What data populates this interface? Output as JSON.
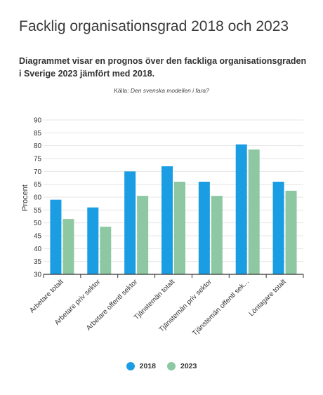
{
  "title": "Facklig organisationsgrad 2018 och 2023",
  "subtitle": "Diagrammet visar en prognos över den fackliga organisationsgraden i Sverige 2023 jämfört med 2018.",
  "source_label": "Källa:",
  "source_text": "Den svenska modellen i fara?",
  "colors": {
    "s2018": "#1b9de3",
    "s2023": "#8dc8a2",
    "grid": "#e4e4e4",
    "axis": "#333333"
  },
  "chart_data": {
    "type": "bar",
    "title": "",
    "xlabel": "",
    "ylabel": "Procent",
    "ylim": [
      30,
      90
    ],
    "yticks": [
      30,
      35,
      40,
      45,
      50,
      55,
      60,
      65,
      70,
      75,
      80,
      85,
      90
    ],
    "grid": true,
    "legend_position": "bottom",
    "categories": [
      "Arbetare totalt",
      "Arbetare priv sektor",
      "Arbetare offentl sektor",
      "Tjänstemän totalt",
      "Tjänstemän priv sektor",
      "Tjänstemän offentl sek...",
      "Löntagare totalt"
    ],
    "series": [
      {
        "name": "2018",
        "values": [
          59,
          56,
          70,
          72,
          66,
          80.5,
          66
        ]
      },
      {
        "name": "2023",
        "values": [
          51.5,
          48.5,
          60.5,
          66,
          60.5,
          78.5,
          62.5
        ]
      }
    ]
  }
}
